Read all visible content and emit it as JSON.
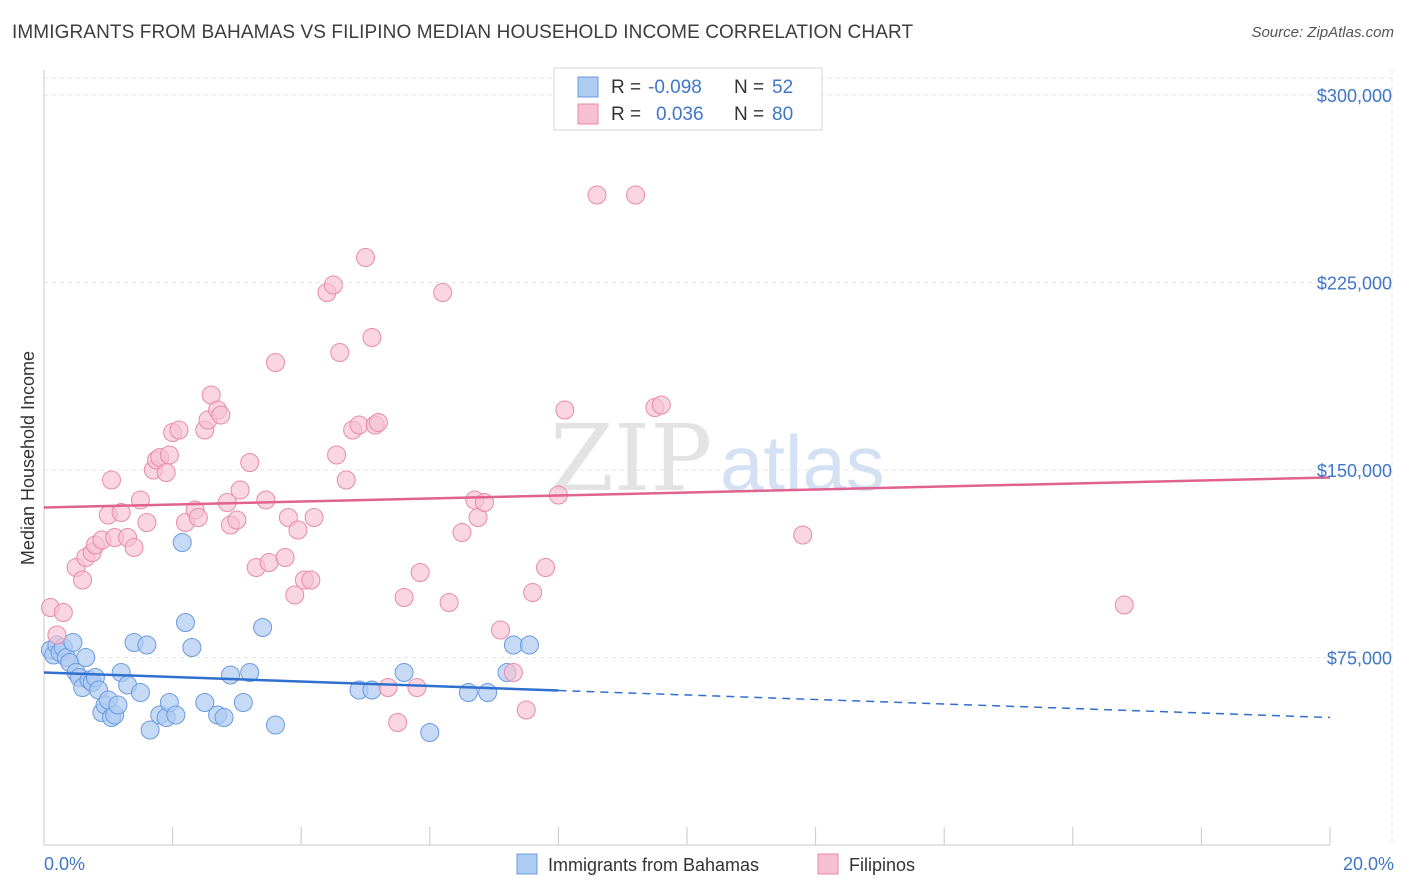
{
  "title": "IMMIGRANTS FROM BAHAMAS VS FILIPINO MEDIAN HOUSEHOLD INCOME CORRELATION CHART",
  "source": "Source: ZipAtlas.com",
  "watermark": {
    "zip": "ZIP",
    "atlas": "atlas"
  },
  "colors": {
    "blue_fill": "#aecbf2",
    "blue_stroke": "#6a9be0",
    "blue_line": "#2f6fce",
    "pink_fill": "#f6c0d2",
    "pink_stroke": "#e98aab",
    "pink_line": "#e0628f",
    "tick_text": "#3f76c8",
    "grid": "#e4e4e4"
  },
  "legend": {
    "rows": [
      {
        "r_label": "R =",
        "r_value": "-0.098",
        "n_label": "N =",
        "n_value": "52"
      },
      {
        "r_label": "R =",
        "r_value": "0.036",
        "n_label": "N =",
        "n_value": "80"
      }
    ]
  },
  "chart_data": {
    "type": "scatter",
    "title": "IMMIGRANTS FROM BAHAMAS VS FILIPINO MEDIAN HOUSEHOLD INCOME CORRELATION CHART",
    "xlabel": "",
    "ylabel": "Median Household Income",
    "xlim": [
      0,
      20
    ],
    "ylim": [
      0,
      310000
    ],
    "x_tick_labels": [
      "0.0%",
      "20.0%"
    ],
    "y_ticks": [
      75000,
      150000,
      225000,
      300000
    ],
    "y_tick_labels": [
      "$75,000",
      "$150,000",
      "$225,000",
      "$300,000"
    ],
    "grid": true,
    "legend_position": "top-center",
    "series": [
      {
        "name": "Immigrants from Bahamas",
        "color": "blue",
        "r": -0.098,
        "n": 52,
        "trend": {
          "x0": 0,
          "y0": 69000,
          "x1": 20,
          "y1": 51000,
          "solid_until_x": 8
        },
        "points": [
          [
            0.1,
            78000
          ],
          [
            0.15,
            76000
          ],
          [
            0.2,
            80000
          ],
          [
            0.25,
            77000
          ],
          [
            0.3,
            79000
          ],
          [
            0.35,
            75000
          ],
          [
            0.4,
            73000
          ],
          [
            0.45,
            81000
          ],
          [
            0.5,
            69000
          ],
          [
            0.55,
            67000
          ],
          [
            0.6,
            63000
          ],
          [
            0.65,
            75000
          ],
          [
            0.7,
            66000
          ],
          [
            0.75,
            65000
          ],
          [
            0.8,
            67000
          ],
          [
            0.85,
            62000
          ],
          [
            0.9,
            53000
          ],
          [
            0.95,
            56000
          ],
          [
            1.0,
            58000
          ],
          [
            1.05,
            51000
          ],
          [
            1.1,
            52000
          ],
          [
            1.15,
            56000
          ],
          [
            1.2,
            69000
          ],
          [
            1.3,
            64000
          ],
          [
            1.4,
            81000
          ],
          [
            1.5,
            61000
          ],
          [
            1.6,
            80000
          ],
          [
            1.65,
            46000
          ],
          [
            1.8,
            52000
          ],
          [
            1.9,
            51000
          ],
          [
            1.95,
            57000
          ],
          [
            2.05,
            52000
          ],
          [
            2.15,
            121000
          ],
          [
            2.2,
            89000
          ],
          [
            2.3,
            79000
          ],
          [
            2.5,
            57000
          ],
          [
            2.7,
            52000
          ],
          [
            2.8,
            51000
          ],
          [
            2.9,
            68000
          ],
          [
            3.1,
            57000
          ],
          [
            3.2,
            69000
          ],
          [
            3.4,
            87000
          ],
          [
            3.6,
            48000
          ],
          [
            4.9,
            62000
          ],
          [
            5.1,
            62000
          ],
          [
            5.6,
            69000
          ],
          [
            6.0,
            45000
          ],
          [
            6.6,
            61000
          ],
          [
            6.9,
            61000
          ],
          [
            7.2,
            69000
          ],
          [
            7.3,
            80000
          ],
          [
            7.55,
            80000
          ]
        ]
      },
      {
        "name": "Filipinos",
        "color": "pink",
        "r": 0.036,
        "n": 80,
        "trend": {
          "x0": 0,
          "y0": 135000,
          "x1": 20,
          "y1": 147000
        },
        "points": [
          [
            0.1,
            95000
          ],
          [
            0.2,
            84000
          ],
          [
            0.3,
            93000
          ],
          [
            0.5,
            111000
          ],
          [
            0.6,
            106000
          ],
          [
            0.65,
            115000
          ],
          [
            0.75,
            117000
          ],
          [
            0.8,
            120000
          ],
          [
            0.9,
            122000
          ],
          [
            1.0,
            132000
          ],
          [
            1.05,
            146000
          ],
          [
            1.1,
            123000
          ],
          [
            1.2,
            133000
          ],
          [
            1.3,
            123000
          ],
          [
            1.4,
            119000
          ],
          [
            1.5,
            138000
          ],
          [
            1.6,
            129000
          ],
          [
            1.7,
            150000
          ],
          [
            1.75,
            154000
          ],
          [
            1.8,
            155000
          ],
          [
            1.9,
            149000
          ],
          [
            1.95,
            156000
          ],
          [
            2.0,
            165000
          ],
          [
            2.1,
            166000
          ],
          [
            2.2,
            129000
          ],
          [
            2.35,
            134000
          ],
          [
            2.4,
            131000
          ],
          [
            2.5,
            166000
          ],
          [
            2.55,
            170000
          ],
          [
            2.6,
            180000
          ],
          [
            2.7,
            174000
          ],
          [
            2.75,
            172000
          ],
          [
            2.85,
            137000
          ],
          [
            2.9,
            128000
          ],
          [
            3.0,
            130000
          ],
          [
            3.05,
            142000
          ],
          [
            3.2,
            153000
          ],
          [
            3.3,
            111000
          ],
          [
            3.45,
            138000
          ],
          [
            3.5,
            113000
          ],
          [
            3.6,
            193000
          ],
          [
            3.75,
            115000
          ],
          [
            3.8,
            131000
          ],
          [
            3.9,
            100000
          ],
          [
            3.95,
            126000
          ],
          [
            4.05,
            106000
          ],
          [
            4.15,
            106000
          ],
          [
            4.2,
            131000
          ],
          [
            4.4,
            221000
          ],
          [
            4.5,
            224000
          ],
          [
            4.55,
            156000
          ],
          [
            4.6,
            197000
          ],
          [
            4.7,
            146000
          ],
          [
            4.8,
            166000
          ],
          [
            4.9,
            168000
          ],
          [
            5.0,
            235000
          ],
          [
            5.1,
            203000
          ],
          [
            5.15,
            168000
          ],
          [
            5.2,
            169000
          ],
          [
            5.35,
            63000
          ],
          [
            5.5,
            49000
          ],
          [
            5.6,
            99000
          ],
          [
            5.8,
            63000
          ],
          [
            5.85,
            109000
          ],
          [
            6.2,
            221000
          ],
          [
            6.3,
            97000
          ],
          [
            6.5,
            125000
          ],
          [
            6.7,
            138000
          ],
          [
            6.75,
            131000
          ],
          [
            6.85,
            137000
          ],
          [
            7.1,
            86000
          ],
          [
            7.3,
            69000
          ],
          [
            7.5,
            54000
          ],
          [
            7.6,
            101000
          ],
          [
            7.8,
            111000
          ],
          [
            8.0,
            140000
          ],
          [
            8.1,
            174000
          ],
          [
            8.6,
            260000
          ],
          [
            9.2,
            260000
          ],
          [
            9.5,
            175000
          ]
        ]
      }
    ],
    "extra_pink_points": [
      [
        9.6,
        176000
      ],
      [
        11.8,
        124000
      ],
      [
        16.8,
        96000
      ]
    ]
  },
  "bottom_legend": [
    {
      "label": "Immigrants from Bahamas"
    },
    {
      "label": "Filipinos"
    }
  ]
}
